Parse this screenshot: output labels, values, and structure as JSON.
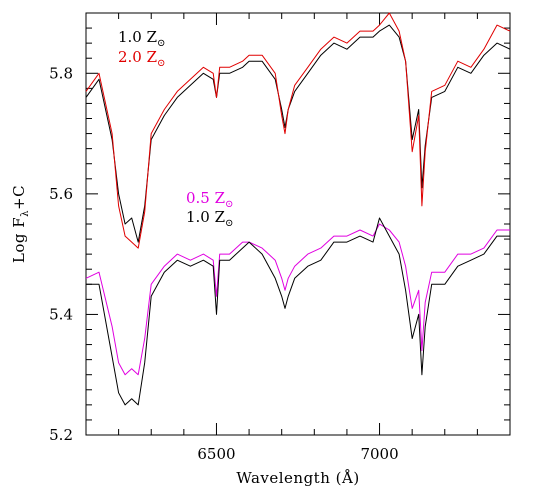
{
  "chart_data": {
    "type": "line",
    "xlabel": "Wavelength (Å)",
    "ylabel": "Log F",
    "ylabel_sub": "λ",
    "ylabel_suffix": "+C",
    "xlim": [
      6100,
      7400
    ],
    "ylim": [
      5.2,
      5.9
    ],
    "xticks": [
      6500,
      7000
    ],
    "yticks": [
      5.2,
      5.4,
      5.6,
      5.8
    ],
    "xtick_labels": [
      "6500",
      "7000"
    ],
    "ytick_labels": [
      "5.2",
      "5.4",
      "5.6",
      "5.8"
    ],
    "grid": false,
    "legend": [
      {
        "group": "upper",
        "text": "1.0 Z",
        "sub": "⊙",
        "color": "#000000"
      },
      {
        "group": "upper",
        "text": "2.0 Z",
        "sub": "⊙",
        "color": "#e00000"
      },
      {
        "group": "lower",
        "text": "0.5 Z",
        "sub": "⊙",
        "color": "#e000e0"
      },
      {
        "group": "lower",
        "text": "1.0 Z",
        "sub": "⊙",
        "color": "#000000"
      }
    ],
    "series": [
      {
        "name": "1.0 Z⊙",
        "group": "upper",
        "color": "#000000",
        "x": [
          6100,
          6140,
          6180,
          6200,
          6220,
          6240,
          6260,
          6280,
          6300,
          6340,
          6380,
          6420,
          6460,
          6490,
          6500,
          6510,
          6540,
          6580,
          6600,
          6640,
          6680,
          6700,
          6710,
          6720,
          6740,
          6780,
          6820,
          6860,
          6900,
          6940,
          6980,
          7000,
          7030,
          7060,
          7080,
          7100,
          7120,
          7130,
          7140,
          7160,
          7200,
          7240,
          7280,
          7320,
          7360,
          7400
        ],
        "y": [
          5.76,
          5.79,
          5.69,
          5.6,
          5.55,
          5.56,
          5.52,
          5.58,
          5.69,
          5.73,
          5.76,
          5.78,
          5.8,
          5.79,
          5.76,
          5.8,
          5.8,
          5.81,
          5.82,
          5.82,
          5.79,
          5.74,
          5.71,
          5.74,
          5.77,
          5.8,
          5.83,
          5.85,
          5.84,
          5.86,
          5.86,
          5.87,
          5.88,
          5.86,
          5.82,
          5.69,
          5.74,
          5.61,
          5.68,
          5.76,
          5.77,
          5.81,
          5.8,
          5.83,
          5.85,
          5.84
        ]
      },
      {
        "name": "2.0 Z⊙",
        "group": "upper",
        "color": "#e00000",
        "x": [
          6100,
          6140,
          6180,
          6200,
          6220,
          6240,
          6260,
          6280,
          6300,
          6340,
          6380,
          6420,
          6460,
          6490,
          6500,
          6510,
          6540,
          6580,
          6600,
          6640,
          6680,
          6700,
          6710,
          6720,
          6740,
          6780,
          6820,
          6860,
          6900,
          6940,
          6980,
          7000,
          7030,
          7060,
          7080,
          7100,
          7120,
          7130,
          7140,
          7160,
          7200,
          7240,
          7280,
          7320,
          7360,
          7400
        ],
        "y": [
          5.77,
          5.8,
          5.7,
          5.58,
          5.53,
          5.52,
          5.51,
          5.57,
          5.7,
          5.74,
          5.77,
          5.79,
          5.81,
          5.8,
          5.76,
          5.81,
          5.81,
          5.82,
          5.83,
          5.83,
          5.8,
          5.73,
          5.7,
          5.74,
          5.78,
          5.81,
          5.84,
          5.86,
          5.85,
          5.87,
          5.87,
          5.88,
          5.9,
          5.87,
          5.82,
          5.67,
          5.73,
          5.58,
          5.67,
          5.77,
          5.78,
          5.82,
          5.81,
          5.84,
          5.88,
          5.87
        ]
      },
      {
        "name": "0.5 Z⊙",
        "group": "lower",
        "color": "#e000e0",
        "x": [
          6100,
          6140,
          6180,
          6200,
          6220,
          6240,
          6260,
          6280,
          6300,
          6340,
          6380,
          6420,
          6460,
          6490,
          6500,
          6510,
          6540,
          6580,
          6600,
          6640,
          6680,
          6700,
          6710,
          6720,
          6740,
          6780,
          6820,
          6860,
          6900,
          6940,
          6980,
          7000,
          7030,
          7060,
          7080,
          7100,
          7120,
          7130,
          7140,
          7160,
          7200,
          7240,
          7280,
          7320,
          7360,
          7400
        ],
        "y": [
          5.46,
          5.47,
          5.38,
          5.32,
          5.3,
          5.31,
          5.3,
          5.36,
          5.45,
          5.48,
          5.5,
          5.49,
          5.5,
          5.49,
          5.43,
          5.5,
          5.5,
          5.52,
          5.52,
          5.51,
          5.49,
          5.46,
          5.44,
          5.46,
          5.48,
          5.5,
          5.51,
          5.53,
          5.53,
          5.54,
          5.53,
          5.55,
          5.54,
          5.52,
          5.48,
          5.41,
          5.44,
          5.34,
          5.42,
          5.47,
          5.47,
          5.5,
          5.5,
          5.51,
          5.54,
          5.54
        ]
      },
      {
        "name": "1.0 Z⊙",
        "group": "lower",
        "color": "#000000",
        "x": [
          6100,
          6140,
          6180,
          6200,
          6220,
          6240,
          6260,
          6280,
          6300,
          6340,
          6380,
          6420,
          6460,
          6490,
          6500,
          6510,
          6540,
          6580,
          6600,
          6640,
          6680,
          6700,
          6710,
          6720,
          6740,
          6780,
          6820,
          6860,
          6900,
          6940,
          6980,
          7000,
          7030,
          7060,
          7080,
          7100,
          7120,
          7130,
          7140,
          7160,
          7200,
          7240,
          7280,
          7320,
          7360,
          7400
        ],
        "y": [
          5.45,
          5.45,
          5.33,
          5.27,
          5.25,
          5.26,
          5.25,
          5.32,
          5.43,
          5.47,
          5.49,
          5.48,
          5.49,
          5.48,
          5.4,
          5.49,
          5.49,
          5.51,
          5.52,
          5.5,
          5.46,
          5.43,
          5.41,
          5.43,
          5.46,
          5.48,
          5.49,
          5.52,
          5.52,
          5.53,
          5.52,
          5.56,
          5.53,
          5.5,
          5.44,
          5.36,
          5.4,
          5.3,
          5.38,
          5.45,
          5.45,
          5.48,
          5.49,
          5.5,
          5.53,
          5.53
        ]
      }
    ]
  }
}
